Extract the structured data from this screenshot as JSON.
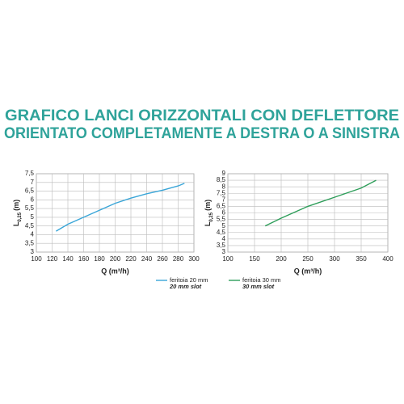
{
  "title_lines": [
    "GRAFICO LANCI ORIZZONTALI CON DEFLETTORE",
    "ORIENTATO COMPLETAMENTE A DESTRA O A SINISTRA"
  ],
  "chart_data": [
    {
      "type": "line",
      "xlabel": "Q (m³/h)",
      "ylabel": "L",
      "ylabel_sub": "0,25",
      "ylabel_unit": "(m)",
      "xlim": [
        100,
        300
      ],
      "xticks": [
        100,
        120,
        140,
        160,
        180,
        200,
        220,
        240,
        260,
        280,
        300
      ],
      "ylim": [
        3,
        7.5
      ],
      "yticks": [
        3,
        {
          "value": 3.5,
          "label": "3,5"
        },
        4,
        {
          "value": 4.5,
          "label": "4,5"
        },
        5,
        {
          "value": 5.5,
          "label": "5,5"
        },
        6,
        {
          "value": 6.5,
          "label": "6,5"
        },
        7,
        {
          "value": 7.5,
          "label": "7,5"
        }
      ],
      "grid": true,
      "series": [
        {
          "name": "feritoia 20 mm",
          "name_en": "20 mm slot",
          "color": "#3aa6d8",
          "x": [
            125,
            140,
            160,
            180,
            200,
            220,
            240,
            260,
            280,
            288
          ],
          "values": [
            4.2,
            4.6,
            5.0,
            5.4,
            5.8,
            6.1,
            6.35,
            6.55,
            6.8,
            6.95
          ]
        }
      ]
    },
    {
      "type": "line",
      "xlabel": "Q (m³/h)",
      "ylabel": "L",
      "ylabel_sub": "0,25",
      "ylabel_unit": "(m)",
      "xlim": [
        100,
        400
      ],
      "xticks": [
        100,
        150,
        200,
        250,
        300,
        350,
        400
      ],
      "ylim": [
        3,
        9
      ],
      "yticks": [
        3,
        {
          "value": 3.5,
          "label": "3,5"
        },
        4,
        {
          "value": 4.5,
          "label": "4,5"
        },
        5,
        {
          "value": 5.5,
          "label": "5,5"
        },
        6,
        {
          "value": 6.5,
          "label": "6,5"
        },
        7,
        {
          "value": 7.5,
          "label": "7,5"
        },
        8,
        {
          "value": 8.5,
          "label": "8,5"
        },
        9
      ],
      "grid": true,
      "series": [
        {
          "name": "feritoia 30 mm",
          "name_en": "30 mm slot",
          "color": "#2e9e5a",
          "x": [
            170,
            200,
            250,
            300,
            350,
            378
          ],
          "values": [
            5.0,
            5.6,
            6.5,
            7.2,
            7.9,
            8.5
          ]
        }
      ]
    }
  ]
}
